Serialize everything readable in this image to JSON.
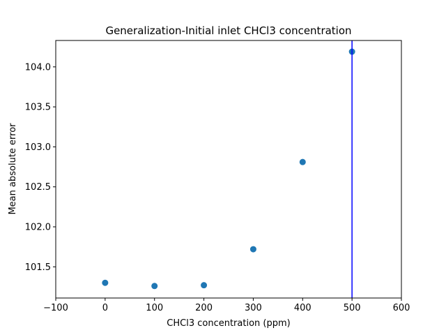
{
  "chart_data": {
    "type": "scatter",
    "title": "Generalization-Initial inlet CHCl3 concentration",
    "xlabel": "CHCl3 concentration (ppm)",
    "ylabel": "Mean absolute error",
    "xlim": [
      -100,
      600
    ],
    "ylim": [
      101.11,
      104.33
    ],
    "x_ticks": [
      -100,
      0,
      100,
      200,
      300,
      400,
      500,
      600
    ],
    "x_tick_labels": [
      "−100",
      "0",
      "100",
      "200",
      "300",
      "400",
      "500",
      "600"
    ],
    "y_ticks": [
      101.5,
      102.0,
      102.5,
      103.0,
      103.5,
      104.0
    ],
    "y_tick_labels": [
      "101.5",
      "102.0",
      "102.5",
      "103.0",
      "103.5",
      "104.0"
    ],
    "grid": false,
    "series": [
      {
        "x": [
          0,
          100,
          200,
          300,
          400,
          500
        ],
        "y": [
          101.3,
          101.26,
          101.27,
          101.72,
          102.81,
          104.19
        ],
        "color": "#1f77b4"
      }
    ],
    "vertical_line": {
      "x": 500,
      "color": "#0000ff"
    }
  }
}
